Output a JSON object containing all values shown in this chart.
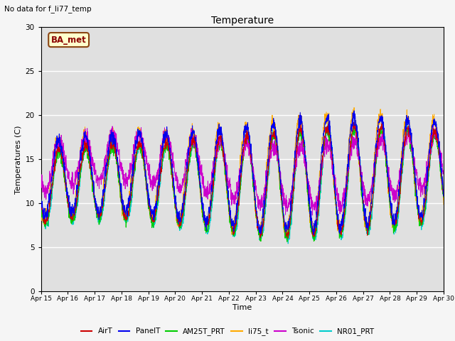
{
  "title": "Temperature",
  "ylabel": "Temperatures (C)",
  "xlabel": "Time",
  "note": "No data for f_li77_temp",
  "station_label": "BA_met",
  "ylim": [
    0,
    30
  ],
  "yticks": [
    0,
    5,
    10,
    15,
    20,
    25,
    30
  ],
  "xlim": [
    15,
    30
  ],
  "series_colors": {
    "AirT": "#cc0000",
    "PanelT": "#0000ee",
    "AM25T_PRT": "#00cc00",
    "li75_t": "#ffaa00",
    "Tsonic": "#cc00cc",
    "NR01_PRT": "#00cccc"
  },
  "background_color": "#e0e0e0",
  "fig_color": "#f5f5f5"
}
